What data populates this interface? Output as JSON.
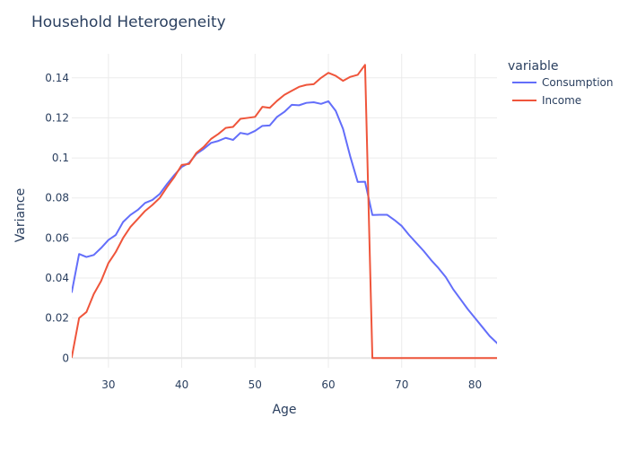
{
  "chart_data": {
    "type": "line",
    "title": "Household Heterogeneity",
    "xlabel": "Age",
    "ylabel": "Variance",
    "xlim": [
      25,
      83
    ],
    "ylim": [
      -0.0048,
      0.152
    ],
    "xticks": [
      30,
      40,
      50,
      60,
      70,
      80
    ],
    "yticks": [
      0,
      0.02,
      0.04,
      0.06,
      0.08,
      0.1,
      0.12,
      0.14
    ],
    "ytick_labels": [
      "0",
      "0.02",
      "0.04",
      "0.06",
      "0.08",
      "0.1",
      "0.12",
      "0.14"
    ],
    "grid": true,
    "legend": {
      "title": "variable",
      "placement": "top-right"
    },
    "series": [
      {
        "name": "Consumption",
        "color": "#636efa",
        "points": [
          [
            25,
            0.033
          ],
          [
            26,
            0.052
          ],
          [
            27,
            0.0505
          ],
          [
            28,
            0.0515
          ],
          [
            29,
            0.055
          ],
          [
            30,
            0.059
          ],
          [
            31,
            0.0615
          ],
          [
            32,
            0.068
          ],
          [
            33,
            0.0715
          ],
          [
            34,
            0.074
          ],
          [
            35,
            0.0775
          ],
          [
            36,
            0.079
          ],
          [
            37,
            0.082
          ],
          [
            38,
            0.087
          ],
          [
            39,
            0.0915
          ],
          [
            40,
            0.0955
          ],
          [
            41,
            0.0975
          ],
          [
            42,
            0.102
          ],
          [
            43,
            0.1045
          ],
          [
            44,
            0.1075
          ],
          [
            45,
            0.1085
          ],
          [
            46,
            0.11
          ],
          [
            47,
            0.109
          ],
          [
            48,
            0.1125
          ],
          [
            49,
            0.1118
          ],
          [
            50,
            0.1135
          ],
          [
            51,
            0.116
          ],
          [
            52,
            0.1162
          ],
          [
            53,
            0.1205
          ],
          [
            54,
            0.123
          ],
          [
            55,
            0.1265
          ],
          [
            56,
            0.1263
          ],
          [
            57,
            0.1275
          ],
          [
            58,
            0.1278
          ],
          [
            59,
            0.127
          ],
          [
            60,
            0.1283
          ],
          [
            61,
            0.1235
          ],
          [
            62,
            0.1145
          ],
          [
            63,
            0.1005
          ],
          [
            64,
            0.088
          ],
          [
            65,
            0.0881
          ],
          [
            66,
            0.0715
          ],
          [
            67,
            0.0716
          ],
          [
            68,
            0.0716
          ],
          [
            69,
            0.069
          ],
          [
            70,
            0.066
          ],
          [
            71,
            0.0615
          ],
          [
            72,
            0.0575
          ],
          [
            73,
            0.0535
          ],
          [
            74,
            0.049
          ],
          [
            75,
            0.045
          ],
          [
            76,
            0.0405
          ],
          [
            77,
            0.0345
          ],
          [
            78,
            0.0295
          ],
          [
            79,
            0.0245
          ],
          [
            80,
            0.02
          ],
          [
            81,
            0.0155
          ],
          [
            82,
            0.011
          ],
          [
            83,
            0.0075
          ],
          [
            84,
            0.0045
          ]
        ]
      },
      {
        "name": "Income",
        "color": "#ef553b",
        "points": [
          [
            25,
            0.0005
          ],
          [
            26,
            0.02
          ],
          [
            27,
            0.023
          ],
          [
            28,
            0.032
          ],
          [
            29,
            0.0385
          ],
          [
            30,
            0.0475
          ],
          [
            31,
            0.053
          ],
          [
            32,
            0.06
          ],
          [
            33,
            0.0655
          ],
          [
            34,
            0.0695
          ],
          [
            35,
            0.0735
          ],
          [
            36,
            0.0765
          ],
          [
            37,
            0.08
          ],
          [
            38,
            0.0855
          ],
          [
            39,
            0.0905
          ],
          [
            40,
            0.0965
          ],
          [
            41,
            0.097
          ],
          [
            42,
            0.1025
          ],
          [
            43,
            0.1055
          ],
          [
            44,
            0.1095
          ],
          [
            45,
            0.112
          ],
          [
            46,
            0.115
          ],
          [
            47,
            0.1155
          ],
          [
            48,
            0.1195
          ],
          [
            49,
            0.12
          ],
          [
            50,
            0.1205
          ],
          [
            51,
            0.1255
          ],
          [
            52,
            0.125
          ],
          [
            53,
            0.1285
          ],
          [
            54,
            0.1315
          ],
          [
            55,
            0.1335
          ],
          [
            56,
            0.1355
          ],
          [
            57,
            0.1365
          ],
          [
            58,
            0.1368
          ],
          [
            59,
            0.14
          ],
          [
            60,
            0.1425
          ],
          [
            61,
            0.141
          ],
          [
            62,
            0.1385
          ],
          [
            63,
            0.1405
          ],
          [
            64,
            0.1415
          ],
          [
            65,
            0.1465
          ],
          [
            66,
            0
          ],
          [
            67,
            0
          ],
          [
            68,
            0
          ],
          [
            69,
            0
          ],
          [
            70,
            0
          ],
          [
            71,
            0
          ],
          [
            72,
            0
          ],
          [
            73,
            0
          ],
          [
            74,
            0
          ],
          [
            75,
            0
          ],
          [
            76,
            0
          ],
          [
            77,
            0
          ],
          [
            78,
            0
          ],
          [
            79,
            0
          ],
          [
            80,
            0
          ],
          [
            81,
            0
          ],
          [
            82,
            0
          ],
          [
            83,
            0
          ]
        ]
      }
    ]
  }
}
